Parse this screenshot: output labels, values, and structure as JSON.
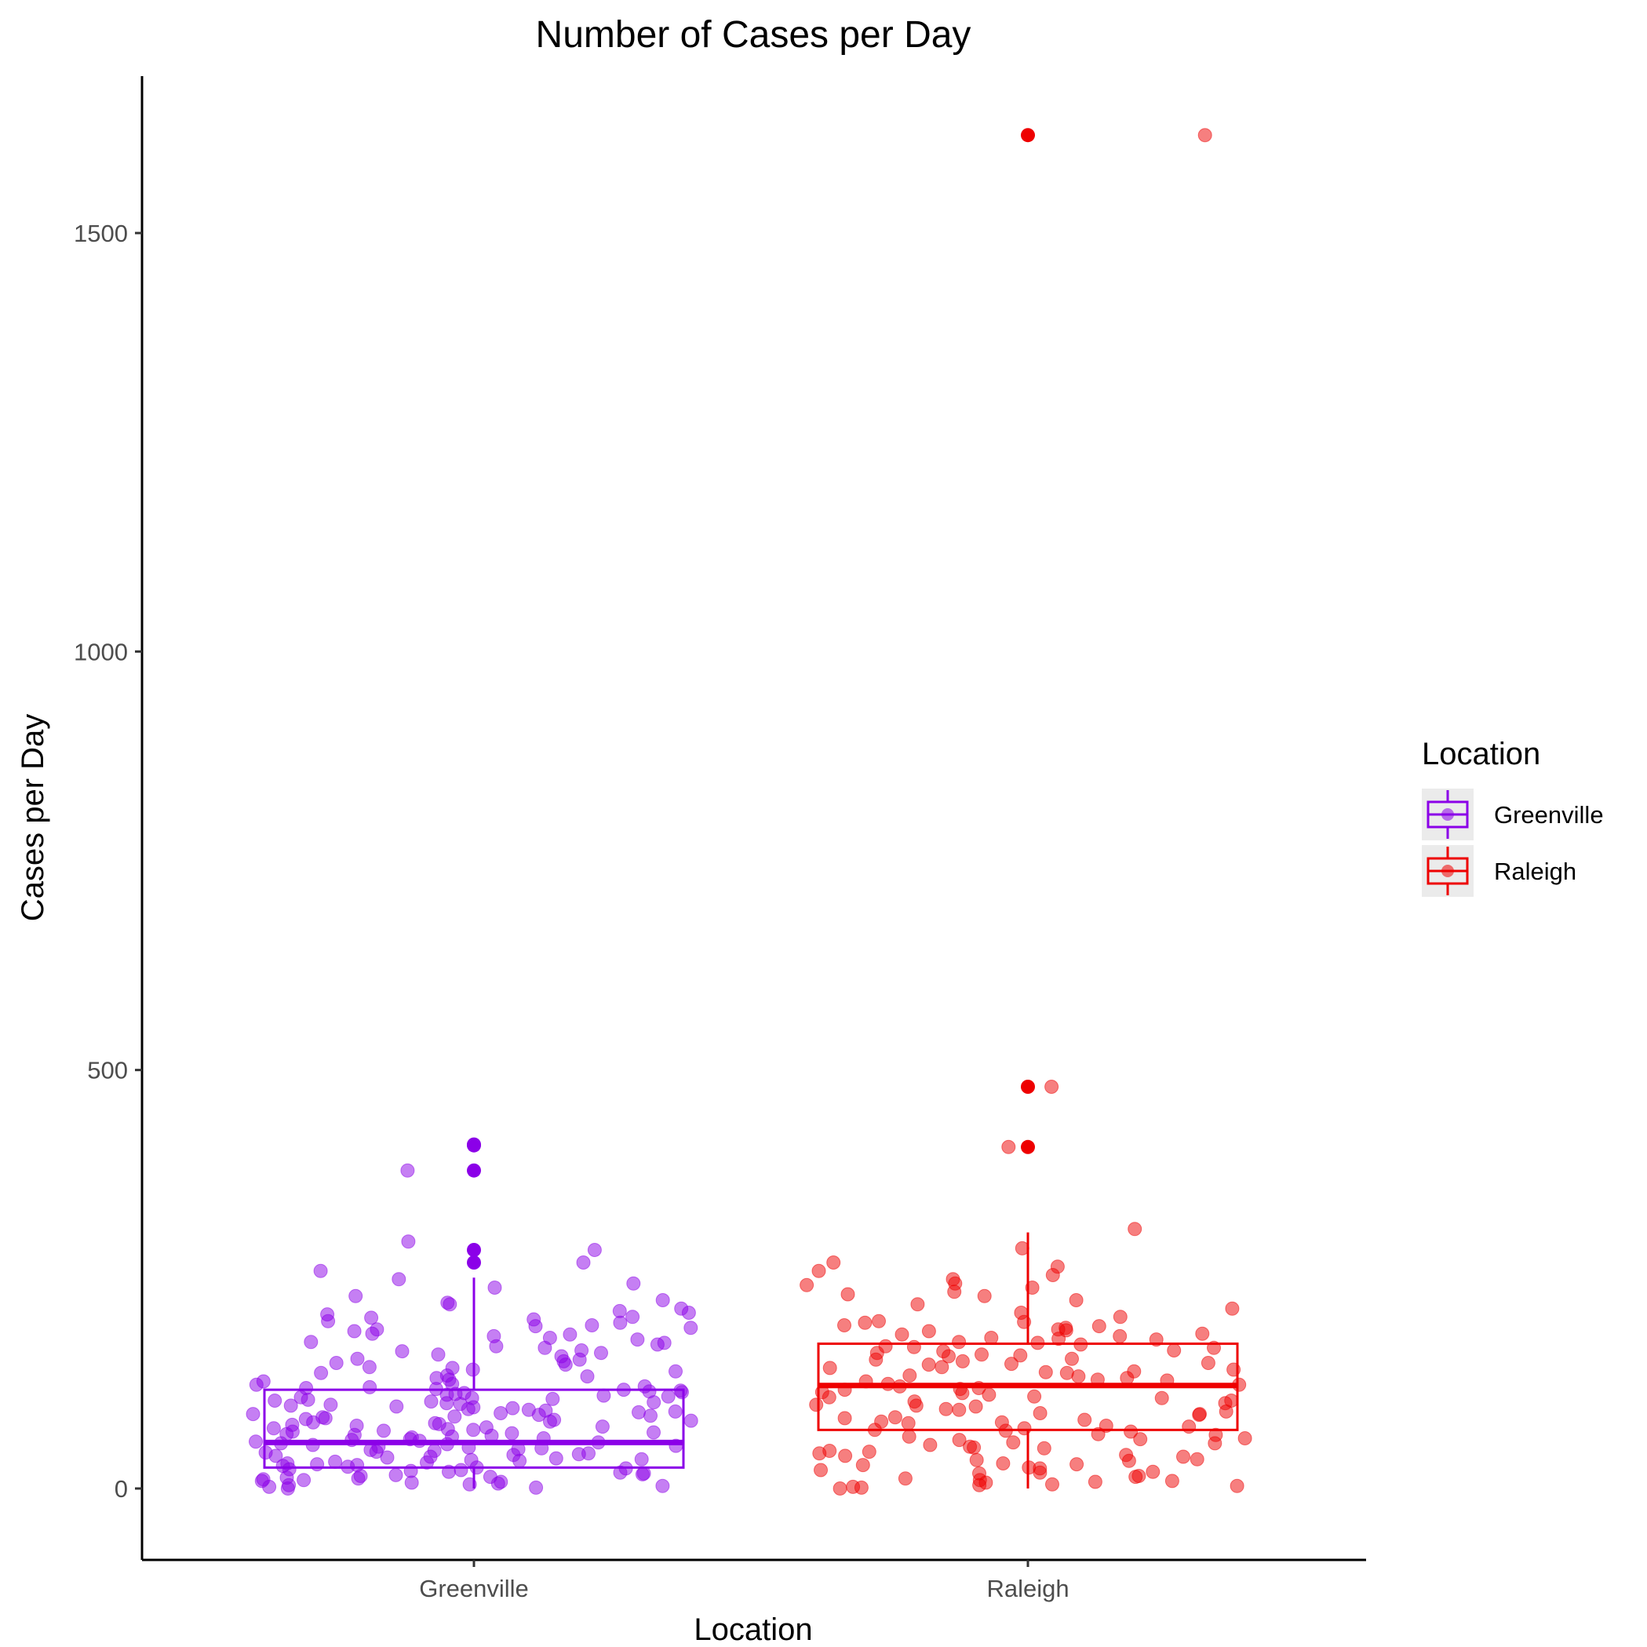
{
  "chart_data": {
    "type": "boxplot",
    "title": "Number of Cases per Day",
    "xlabel": "Location",
    "ylabel": "Cases per Day",
    "categories": [
      "Greenville",
      "Raleigh"
    ],
    "y_ticks": [
      0,
      500,
      1000,
      1500
    ],
    "ylim": [
      -80,
      1690
    ],
    "grid": false,
    "legend": {
      "title": "Location",
      "position": "right"
    },
    "colors": {
      "Greenville": "#8B00E8",
      "Raleigh": "#EE0000"
    },
    "boxes": [
      {
        "name": "Greenville",
        "q1": 25,
        "median": 55,
        "q3": 118,
        "whisker_low": 0,
        "whisker_high": 252,
        "outliers": [
          270,
          285,
          380,
          410,
          411
        ]
      },
      {
        "name": "Raleigh",
        "q1": 70,
        "median": 123,
        "q3": 173,
        "whisker_low": 0,
        "whisker_high": 306,
        "outliers": [
          408,
          480,
          1617
        ]
      }
    ],
    "jitter": [
      {
        "name": "Greenville",
        "values": [
          5,
          8,
          10,
          15,
          20,
          25,
          30,
          35,
          40,
          45,
          50,
          55,
          60,
          65,
          70,
          75,
          80,
          85,
          90,
          95,
          100,
          105,
          110,
          115,
          120,
          130,
          140,
          150,
          160,
          170,
          180,
          190,
          200,
          210,
          220,
          230,
          240,
          250,
          260,
          285,
          295,
          380,
          0,
          3,
          12,
          18,
          22,
          28,
          33,
          38,
          42,
          48,
          52,
          58,
          62,
          68,
          72,
          78,
          82,
          88,
          92,
          98,
          102,
          108,
          112,
          118,
          125,
          135,
          145,
          155,
          165,
          175,
          185,
          195,
          205,
          215,
          225,
          245,
          270,
          1,
          6,
          11,
          16,
          21,
          26,
          31,
          36,
          41,
          46,
          51,
          56,
          61,
          66,
          71,
          76,
          81,
          86,
          91,
          96,
          101,
          106,
          111,
          116,
          121,
          128,
          138,
          148,
          158,
          168,
          178,
          188,
          198,
          208,
          2,
          4,
          9,
          14,
          19,
          24,
          29,
          34,
          39,
          44,
          49,
          54,
          59,
          64,
          69,
          74,
          79,
          84,
          89,
          94,
          99,
          104,
          109,
          114,
          119,
          124,
          134,
          144,
          154,
          164,
          174,
          184,
          194,
          204,
          7,
          13,
          17,
          23,
          27,
          32,
          37,
          43,
          47,
          53,
          57,
          63,
          67,
          73,
          77,
          83,
          87,
          93,
          97,
          103,
          107,
          113,
          117,
          122,
          132,
          142,
          152,
          162,
          172,
          182,
          192,
          202,
          212,
          222
        ]
      },
      {
        "name": "Raleigh",
        "values": [
          0,
          3,
          5,
          8,
          10,
          15,
          20,
          25,
          30,
          35,
          40,
          45,
          50,
          55,
          60,
          65,
          70,
          75,
          80,
          85,
          90,
          95,
          100,
          105,
          110,
          115,
          120,
          125,
          130,
          135,
          140,
          145,
          150,
          155,
          160,
          165,
          170,
          175,
          180,
          185,
          190,
          195,
          200,
          210,
          220,
          230,
          240,
          250,
          260,
          270,
          310,
          408,
          480,
          1617,
          2,
          7,
          12,
          18,
          22,
          28,
          33,
          38,
          42,
          48,
          52,
          58,
          62,
          68,
          72,
          78,
          82,
          88,
          92,
          98,
          102,
          108,
          112,
          118,
          122,
          128,
          132,
          138,
          142,
          148,
          152,
          158,
          162,
          168,
          172,
          178,
          182,
          188,
          192,
          198,
          205,
          215,
          225,
          235,
          245,
          255,
          265,
          1,
          4,
          9,
          14,
          19,
          24,
          29,
          34,
          39,
          44,
          49,
          54,
          59,
          64,
          69,
          74,
          79,
          84,
          89,
          94,
          99,
          104,
          109,
          114,
          119,
          124,
          129,
          134,
          139,
          144,
          149,
          154,
          159,
          164,
          169,
          174,
          179,
          184,
          189,
          194,
          199,
          232,
          243,
          287
        ]
      }
    ]
  }
}
